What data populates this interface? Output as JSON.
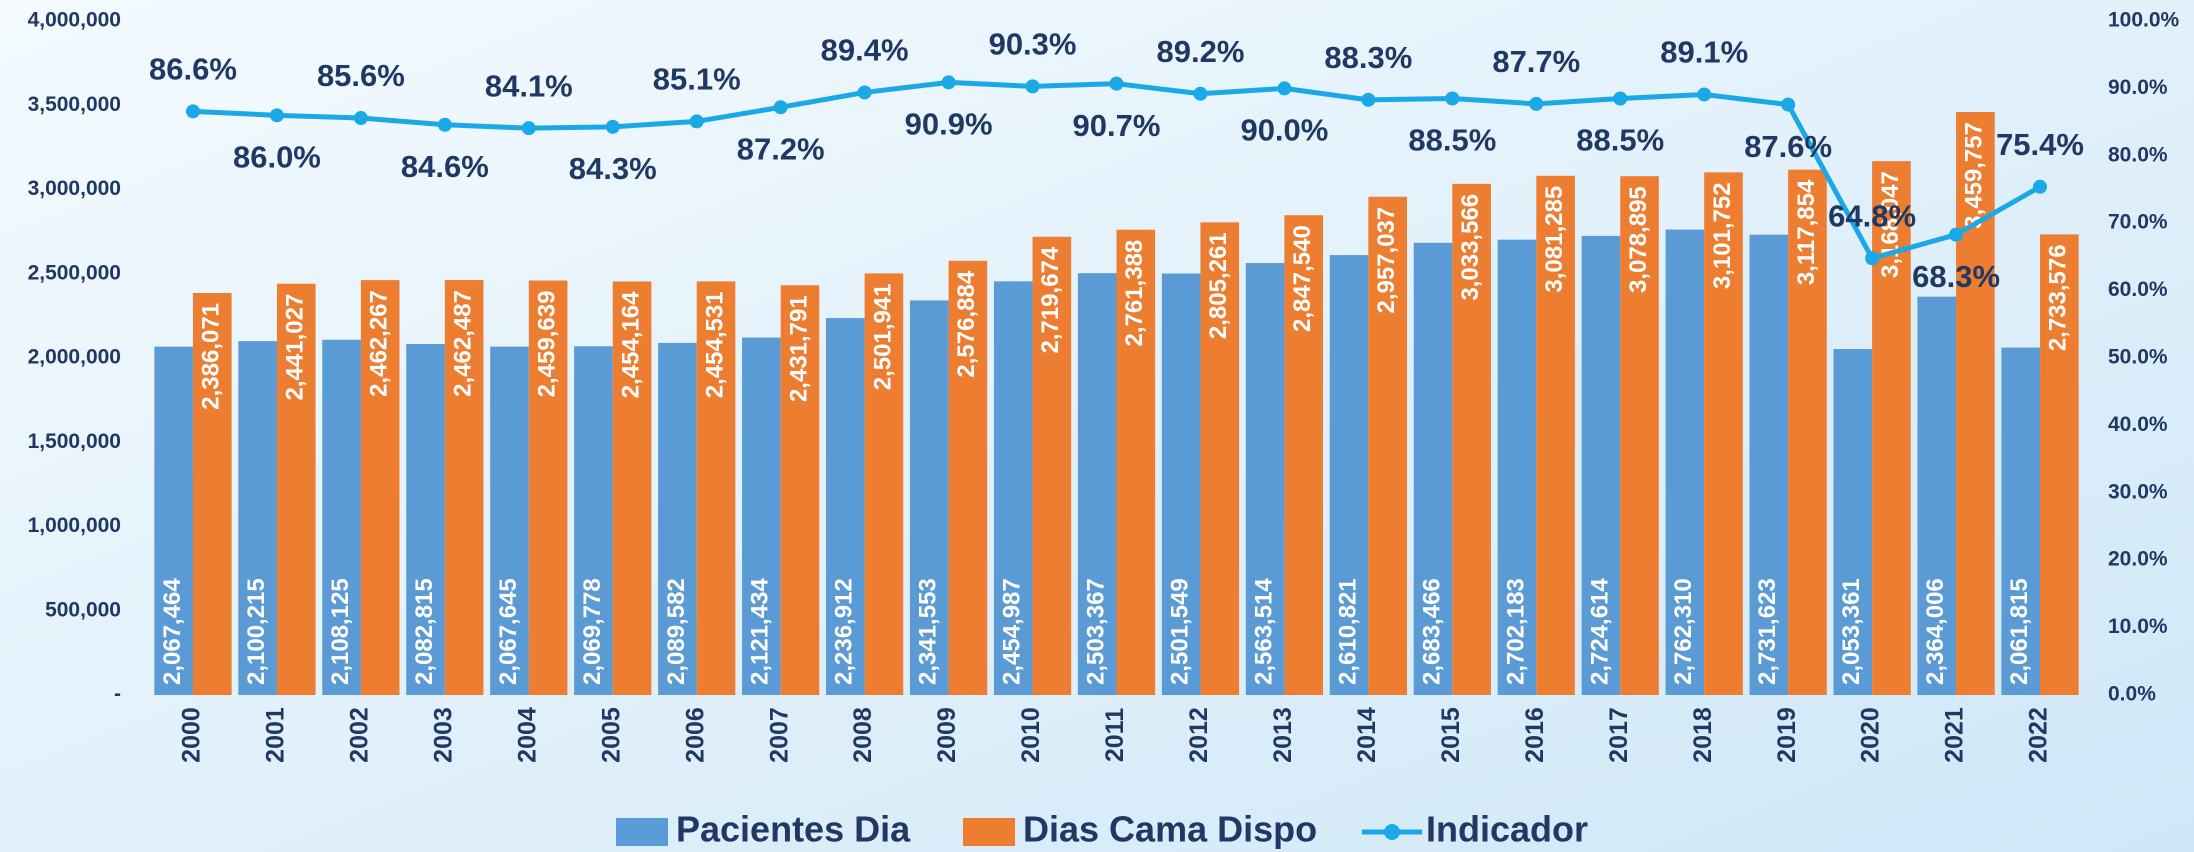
{
  "chart_data": {
    "type": "bar-line",
    "categories": [
      "2000",
      "2001",
      "2002",
      "2003",
      "2004",
      "2005",
      "2006",
      "2007",
      "2008",
      "2009",
      "2010",
      "2011",
      "2012",
      "2013",
      "2014",
      "2015",
      "2016",
      "2017",
      "2018",
      "2019",
      "2020",
      "2021",
      "2022"
    ],
    "series": [
      {
        "name": "Pacientes Dia",
        "type": "bar",
        "color": "#5b9bd5",
        "values": [
          2067464,
          2100215,
          2108125,
          2082815,
          2067645,
          2069778,
          2089582,
          2121434,
          2236912,
          2341553,
          2454987,
          2503367,
          2501549,
          2563514,
          2610821,
          2683466,
          2702183,
          2724614,
          2762310,
          2731623,
          2053361,
          2364006,
          2061815
        ],
        "value_labels": [
          "2,067,464",
          "2,100,215",
          "2,108,125",
          "2,082,815",
          "2,067,645",
          "2,069,778",
          "2,089,582",
          "2,121,434",
          "2,236,912",
          "2,341,553",
          "2,454,987",
          "2,503,367",
          "2,501,549",
          "2,563,514",
          "2,610,821",
          "2,683,466",
          "2,702,183",
          "2,724,614",
          "2,762,310",
          "2,731,623",
          "2,053,361",
          "2,364,006",
          "2,061,815"
        ]
      },
      {
        "name": "Dias Cama Dispo",
        "type": "bar",
        "color": "#ed7d31",
        "values": [
          2386071,
          2441027,
          2462267,
          2462487,
          2459639,
          2454164,
          2454531,
          2431791,
          2501941,
          2576884,
          2719674,
          2761388,
          2805261,
          2847540,
          2957037,
          3033566,
          3081285,
          3078895,
          3101752,
          3117854,
          3168047,
          3459757,
          2733576
        ],
        "value_labels": [
          "2,386,071",
          "2,441,027",
          "2,462,267",
          "2,462,487",
          "2,459,639",
          "2,454,164",
          "2,454,531",
          "2,431,791",
          "2,501,941",
          "2,576,884",
          "2,719,674",
          "2,761,388",
          "2,805,261",
          "2,847,540",
          "2,957,037",
          "3,033,566",
          "3,081,285",
          "3,078,895",
          "3,101,752",
          "3,117,854",
          "3,168,047",
          "3,459,757",
          "2,733,576"
        ]
      },
      {
        "name": "Indicador",
        "type": "line",
        "axis": "y2",
        "color": "#1aa9e6",
        "values": [
          86.6,
          86.0,
          85.6,
          84.6,
          84.1,
          84.3,
          85.1,
          87.2,
          89.4,
          90.9,
          90.3,
          90.7,
          89.2,
          90.0,
          88.3,
          88.5,
          87.7,
          88.5,
          89.1,
          87.6,
          64.8,
          68.3,
          75.4
        ],
        "value_labels": [
          "86.6%",
          "86.0%",
          "85.6%",
          "84.6%",
          "84.1%",
          "84.3%",
          "85.1%",
          "87.2%",
          "89.4%",
          "90.9%",
          "90.3%",
          "90.7%",
          "89.2%",
          "90.0%",
          "88.3%",
          "88.5%",
          "87.7%",
          "88.5%",
          "89.1%",
          "87.6%",
          "64.8%",
          "68.3%",
          "75.4%"
        ]
      }
    ],
    "ylim": [
      0,
      4000000
    ],
    "yticks": [
      {
        "value": 0,
        "label": "-"
      },
      {
        "value": 500000,
        "label": "500,000"
      },
      {
        "value": 1000000,
        "label": "1,000,000"
      },
      {
        "value": 1500000,
        "label": "1,500,000"
      },
      {
        "value": 2000000,
        "label": "2,000,000"
      },
      {
        "value": 2500000,
        "label": "2,500,000"
      },
      {
        "value": 3000000,
        "label": "3,000,000"
      },
      {
        "value": 3500000,
        "label": "3,500,000"
      },
      {
        "value": 4000000,
        "label": "4,000,000"
      }
    ],
    "y2lim": [
      0,
      100
    ],
    "y2ticks": [
      {
        "value": 0,
        "label": "0.0%"
      },
      {
        "value": 10,
        "label": "10.0%"
      },
      {
        "value": 20,
        "label": "20.0%"
      },
      {
        "value": 30,
        "label": "30.0%"
      },
      {
        "value": 40,
        "label": "40.0%"
      },
      {
        "value": 50,
        "label": "50.0%"
      },
      {
        "value": 60,
        "label": "60.0%"
      },
      {
        "value": 70,
        "label": "70.0%"
      },
      {
        "value": 80,
        "label": "80.0%"
      },
      {
        "value": 90,
        "label": "90.0%"
      },
      {
        "value": 100,
        "label": "100.0%"
      }
    ],
    "grid": false,
    "legend": "bottom"
  }
}
